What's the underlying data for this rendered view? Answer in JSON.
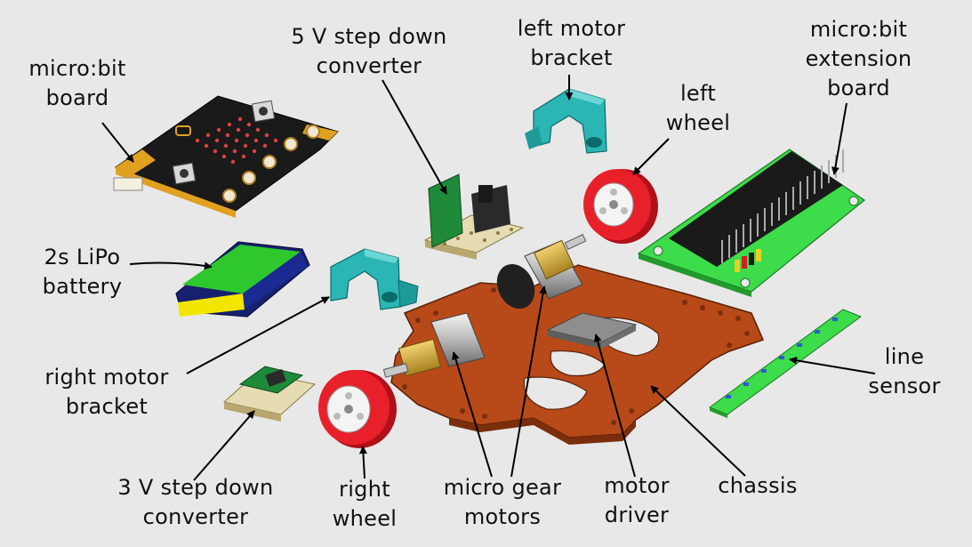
{
  "labels": {
    "microbit_board": "micro:bit\nboard",
    "step_down_5v": "5 V step down\nconverter",
    "left_motor_bracket": "left motor\nbracket",
    "left_wheel": "left\nwheel",
    "extension_board": "micro:bit\nextension\nboard",
    "lipo_battery": "2s LiPo\nbattery",
    "right_motor_bracket": "right motor\nbracket",
    "line_sensor": "line\nsensor",
    "step_down_3v": "3 V step down\nconverter",
    "right_wheel": "right\nwheel",
    "gear_motors": "micro gear\nmotors",
    "motor_driver": "motor\ndriver",
    "chassis": "chassis"
  },
  "colors": {
    "background": "#e8e8e8",
    "chassis": "#b84a1a",
    "bracket": "#2bb5b5",
    "wheel": "#e8202a",
    "pcb_green": "#1f8a3a",
    "extension_green": "#3ddc4a",
    "battery_green": "#2ec82e",
    "battery_stripe": "#f2e600",
    "battery_body": "#16206e",
    "microbit_black": "#1a1a1a",
    "microbit_gold": "#e0a020",
    "brass": "#d9b34a"
  }
}
